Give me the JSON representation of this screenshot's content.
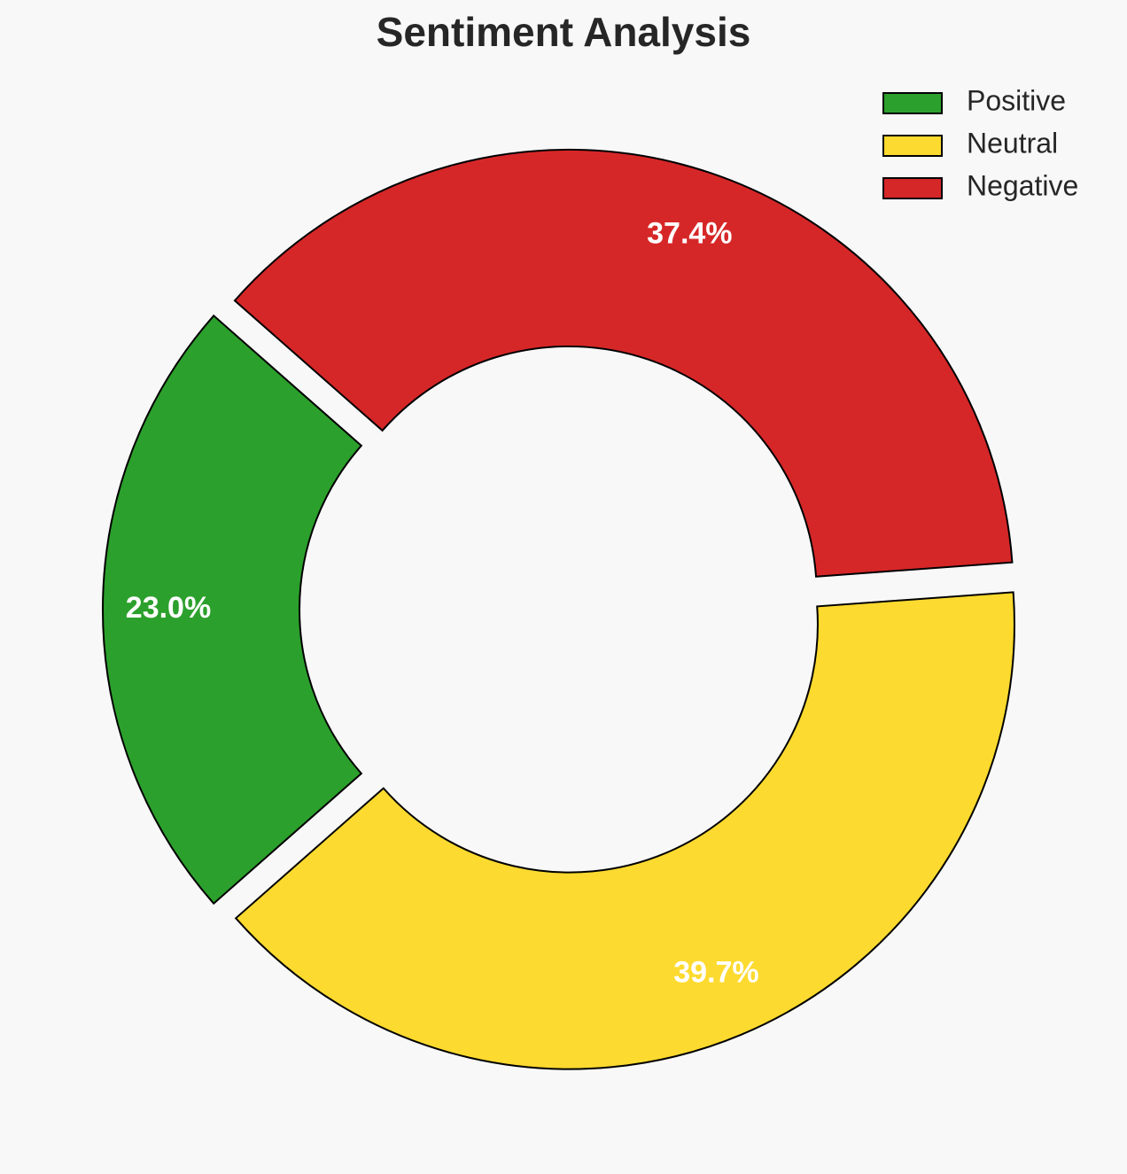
{
  "chart_data": {
    "type": "donut",
    "title": "Sentiment Analysis",
    "categories": [
      "Positive",
      "Neutral",
      "Negative"
    ],
    "values": [
      23.0,
      39.7,
      37.4
    ],
    "value_labels": [
      "23.0%",
      "39.7%",
      "37.4%"
    ],
    "colors": [
      "#2ca02c",
      "#fdda2f",
      "#d62728"
    ],
    "legend": "upper right"
  }
}
